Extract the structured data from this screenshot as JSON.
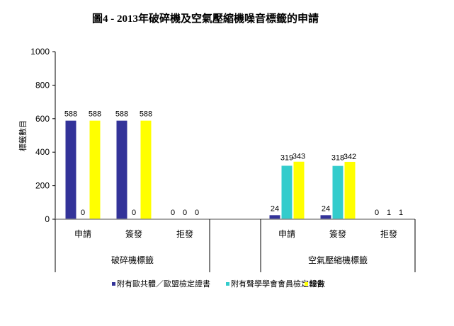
{
  "chart_data": {
    "type": "bar",
    "title": "圖4 - 2013年破碎機及空氣壓縮機噪音標籤的申請",
    "xlabel": "",
    "ylabel": "標籤數目",
    "ylim": [
      0,
      1000
    ],
    "yticks": [
      0,
      200,
      400,
      600,
      800,
      1000
    ],
    "grid": false,
    "legend_position": "bottom",
    "groups": [
      {
        "label": "破碎機標籤",
        "categories": [
          "申請",
          "簽發",
          "拒發"
        ]
      },
      {
        "label": "空氣壓縮機標籤",
        "categories": [
          "申請",
          "簽發",
          "拒發"
        ]
      }
    ],
    "categories": [
      "破碎機標籤-申請",
      "破碎機標籤-簽發",
      "破碎機標籤-拒發",
      "空氣壓縮機標籤-申請",
      "空氣壓縮機標籤-簽發",
      "空氣壓縮機標籤-拒發"
    ],
    "series": [
      {
        "name": "附有歐共體／歐盟檢定證書",
        "color": "#333399",
        "values": [
          588,
          588,
          0,
          24,
          24,
          0
        ]
      },
      {
        "name": "附有聲學學會會員檢定報告",
        "color": "#33CCCC",
        "values": [
          0,
          0,
          0,
          319,
          318,
          1
        ]
      },
      {
        "name": "總數",
        "color": "#FFFF00",
        "values": [
          588,
          588,
          0,
          343,
          342,
          1
        ]
      }
    ]
  }
}
